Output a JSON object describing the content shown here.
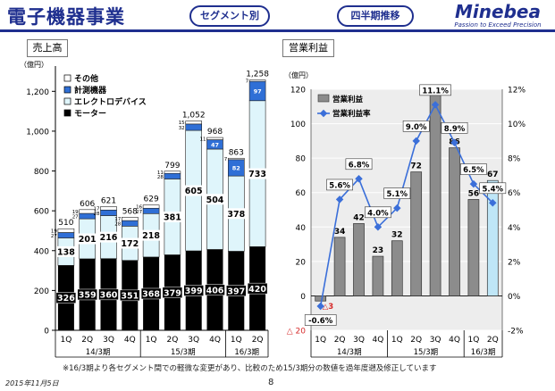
{
  "header": {
    "title": "電子機器事業",
    "segment_pill": "セグメント別",
    "period_pill": "四半期推移",
    "brand": "Minebea",
    "tagline": "Passion to Exceed Precision"
  },
  "footer": {
    "note": "※16/3期より各セグメント間での軽微な変更があり、比較のため15/3期分の数値を過年度遡及修正しています",
    "date": "2015年11月5日",
    "page_number": "8"
  },
  "chart_data": [
    {
      "type": "bar",
      "stacked": true,
      "panel_title": "売上高",
      "unit_label": "（億円）",
      "categories": [
        "1Q",
        "2Q",
        "3Q",
        "4Q",
        "1Q",
        "2Q",
        "3Q",
        "4Q",
        "1Q",
        "2Q"
      ],
      "period_groups": [
        {
          "label": "14/3期",
          "start": 0,
          "end": 3
        },
        {
          "label": "15/3期",
          "start": 4,
          "end": 7
        },
        {
          "label": "16/3期",
          "start": 8,
          "end": 9
        }
      ],
      "series": [
        {
          "name": "モーター",
          "color": "#000000",
          "values": [
            326,
            359,
            360,
            351,
            368,
            379,
            399,
            406,
            397,
            420
          ]
        },
        {
          "name": "エレクトロデバイス",
          "color": "#dff5fb",
          "values": [
            138,
            201,
            216,
            172,
            218,
            381,
            605,
            504,
            378,
            733
          ]
        },
        {
          "name": "計測機器",
          "color": "#2f6fd6",
          "values": [
            27,
            27,
            28,
            28,
            27,
            28,
            32,
            47,
            82,
            97
          ]
        },
        {
          "name": "その他",
          "color": "#ffffff",
          "values": [
            19,
            19,
            17,
            17,
            16,
            11,
            15,
            11,
            7,
            7
          ]
        }
      ],
      "totals": [
        510,
        606,
        621,
        568,
        629,
        799,
        1052,
        968,
        863,
        1258
      ],
      "legend_order": [
        "その他",
        "計測機器",
        "エレクトロデバイス",
        "モーター"
      ],
      "ylim": [
        0,
        1300
      ],
      "yticks": [
        0,
        200,
        400,
        600,
        800,
        1000,
        1200
      ],
      "ytick_labels": [
        "0",
        "200",
        "400",
        "600",
        "800",
        "1,000",
        "1,200"
      ],
      "grid": false
    },
    {
      "type": "bar",
      "panel_title": "営業利益",
      "unit_label": "（億円）",
      "categories": [
        "1Q",
        "2Q",
        "3Q",
        "4Q",
        "1Q",
        "2Q",
        "3Q",
        "4Q",
        "1Q",
        "2Q"
      ],
      "period_groups": [
        {
          "label": "14/3期",
          "start": 0,
          "end": 3
        },
        {
          "label": "15/3期",
          "start": 4,
          "end": 7
        },
        {
          "label": "16/3期",
          "start": 8,
          "end": 9
        }
      ],
      "series": [
        {
          "name": "営業利益",
          "type": "bar",
          "axis": "left",
          "color": "#8c8c8c",
          "highlight_color": "#bfe6f7",
          "values": [
            -3,
            34,
            42,
            23,
            32,
            72,
            117,
            86,
            56,
            67
          ]
        },
        {
          "name": "営業利益率",
          "type": "line",
          "axis": "right",
          "color": "#3b6fd9",
          "values": [
            -0.6,
            5.6,
            6.8,
            4.0,
            5.1,
            9.0,
            11.1,
            8.9,
            6.5,
            5.4
          ],
          "labels": [
            "-0.6%",
            "5.6%",
            "6.8%",
            "4.0%",
            "5.1%",
            "9.0%",
            "11.1%",
            "8.9%",
            "6.5%",
            "5.4%"
          ],
          "shown_labels": [
            0,
            1,
            2,
            3,
            4,
            5,
            6,
            7,
            8,
            9
          ]
        }
      ],
      "bar_value_labels": [
        "3",
        "34",
        "42",
        "23",
        "32",
        "72",
        "117",
        "86",
        "56",
        "67"
      ],
      "negative_marker": "△",
      "ylim": [
        -20,
        120
      ],
      "yticks": [
        -20,
        0,
        20,
        40,
        60,
        80,
        100,
        120
      ],
      "ytick_labels": [
        "△ 20",
        "0",
        "20",
        "40",
        "60",
        "80",
        "100",
        "120"
      ],
      "y2lim": [
        -2,
        12
      ],
      "y2ticks": [
        -2,
        0,
        2,
        4,
        6,
        8,
        10,
        12
      ],
      "y2tick_labels": [
        "-2%",
        "0%",
        "2%",
        "4%",
        "6%",
        "8%",
        "10%",
        "12%"
      ],
      "legend": [
        "営業利益",
        "営業利益率"
      ],
      "legend_position": "top-left",
      "grid": true
    }
  ]
}
